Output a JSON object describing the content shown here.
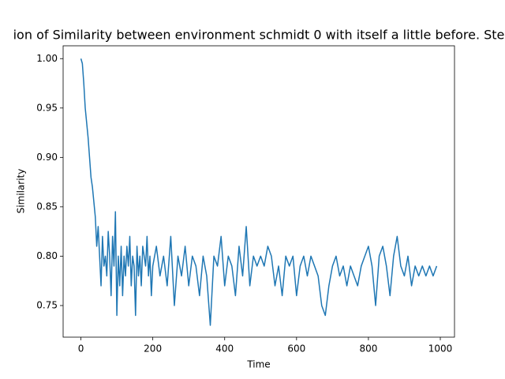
{
  "chart_data": {
    "type": "line",
    "title": "ion of Similarity between environment schmidt 0 with itself a little before. Ste",
    "xlabel": "Time",
    "ylabel": "Similarity",
    "x": [
      0,
      4,
      8,
      12,
      16,
      20,
      24,
      28,
      32,
      36,
      40,
      44,
      48,
      52,
      56,
      60,
      64,
      68,
      72,
      76,
      80,
      84,
      88,
      92,
      96,
      100,
      104,
      108,
      112,
      116,
      120,
      124,
      128,
      132,
      136,
      140,
      144,
      148,
      152,
      156,
      160,
      164,
      168,
      172,
      176,
      180,
      184,
      188,
      192,
      196,
      200,
      210,
      220,
      230,
      240,
      250,
      260,
      270,
      280,
      290,
      300,
      310,
      320,
      330,
      340,
      350,
      360,
      370,
      380,
      390,
      400,
      410,
      420,
      430,
      440,
      450,
      460,
      470,
      480,
      490,
      500,
      510,
      520,
      530,
      540,
      550,
      560,
      570,
      580,
      590,
      600,
      610,
      620,
      630,
      640,
      650,
      660,
      670,
      680,
      690,
      700,
      710,
      720,
      730,
      740,
      750,
      760,
      770,
      780,
      790,
      800,
      810,
      820,
      830,
      840,
      850,
      860,
      870,
      880,
      890,
      900,
      910,
      920,
      930,
      940,
      950,
      960,
      970,
      980,
      990
    ],
    "series": [
      {
        "color": "#1f77b4",
        "values": [
          1.0,
          0.995,
          0.975,
          0.95,
          0.935,
          0.92,
          0.9,
          0.88,
          0.87,
          0.855,
          0.84,
          0.81,
          0.83,
          0.8,
          0.77,
          0.82,
          0.79,
          0.8,
          0.78,
          0.825,
          0.8,
          0.76,
          0.82,
          0.79,
          0.845,
          0.74,
          0.8,
          0.77,
          0.81,
          0.76,
          0.8,
          0.78,
          0.81,
          0.79,
          0.82,
          0.77,
          0.8,
          0.79,
          0.74,
          0.81,
          0.78,
          0.8,
          0.77,
          0.81,
          0.8,
          0.79,
          0.82,
          0.78,
          0.8,
          0.76,
          0.79,
          0.81,
          0.78,
          0.8,
          0.77,
          0.82,
          0.75,
          0.8,
          0.78,
          0.81,
          0.77,
          0.8,
          0.79,
          0.76,
          0.8,
          0.78,
          0.73,
          0.8,
          0.79,
          0.82,
          0.77,
          0.8,
          0.79,
          0.76,
          0.81,
          0.78,
          0.83,
          0.77,
          0.8,
          0.79,
          0.8,
          0.79,
          0.81,
          0.8,
          0.77,
          0.79,
          0.76,
          0.8,
          0.79,
          0.8,
          0.76,
          0.79,
          0.8,
          0.78,
          0.8,
          0.79,
          0.78,
          0.75,
          0.74,
          0.77,
          0.79,
          0.8,
          0.78,
          0.79,
          0.77,
          0.79,
          0.78,
          0.77,
          0.79,
          0.8,
          0.81,
          0.79,
          0.75,
          0.8,
          0.81,
          0.79,
          0.76,
          0.8,
          0.82,
          0.79,
          0.78,
          0.8,
          0.77,
          0.79,
          0.78,
          0.79,
          0.78,
          0.79,
          0.78,
          0.79
        ]
      }
    ],
    "xlim": [
      -49.5,
      1039.5
    ],
    "ylim": [
      0.718,
      1.013
    ],
    "xticks": [
      0,
      200,
      400,
      600,
      800,
      1000
    ],
    "yticks": [
      0.75,
      {
        "value": 0.8,
        "label": "0.80"
      },
      0.85,
      {
        "value": 0.9,
        "label": "0.90"
      },
      0.95,
      {
        "value": 1.0,
        "label": "1.00"
      }
    ]
  }
}
